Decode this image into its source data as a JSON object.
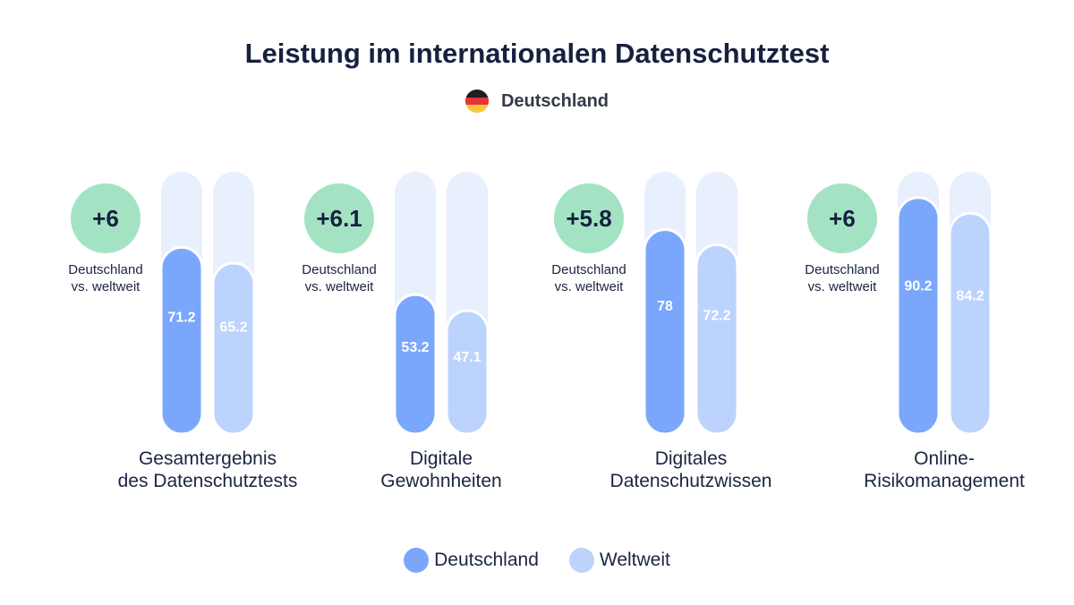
{
  "title": "Leistung im internationalen Datenschutztest",
  "country": {
    "label": "Deutschland",
    "flag_colors": [
      "#1f1f1f",
      "#e8323c",
      "#f8c53a"
    ]
  },
  "colors": {
    "germany": "#7aa7fb",
    "worldwide": "#bcd3fd",
    "track": "#e8effd",
    "badge": "#a3e3c4",
    "badge_text": "#16213e",
    "bar_text": "#ffffff"
  },
  "chart_data": {
    "type": "bar",
    "ylim": [
      0,
      100
    ],
    "categories": [
      [
        "Gesamtergebnis",
        "des Datenschutztests"
      ],
      [
        "Digitale",
        "Gewohnheiten"
      ],
      [
        "Digitales",
        "Datenschutzwissen"
      ],
      [
        "Online-",
        "Risikomanagement"
      ]
    ],
    "series": [
      {
        "name": "Deutschland",
        "values": [
          71.2,
          53.2,
          78,
          90.2
        ]
      },
      {
        "name": "Weltweit",
        "values": [
          65.2,
          47.1,
          72.2,
          84.2
        ]
      }
    ],
    "differences": [
      "+6",
      "+6.1",
      "+5.8",
      "+6"
    ],
    "difference_caption": [
      "Deutschland",
      "vs. weltweit"
    ],
    "legend_position": "bottom"
  }
}
